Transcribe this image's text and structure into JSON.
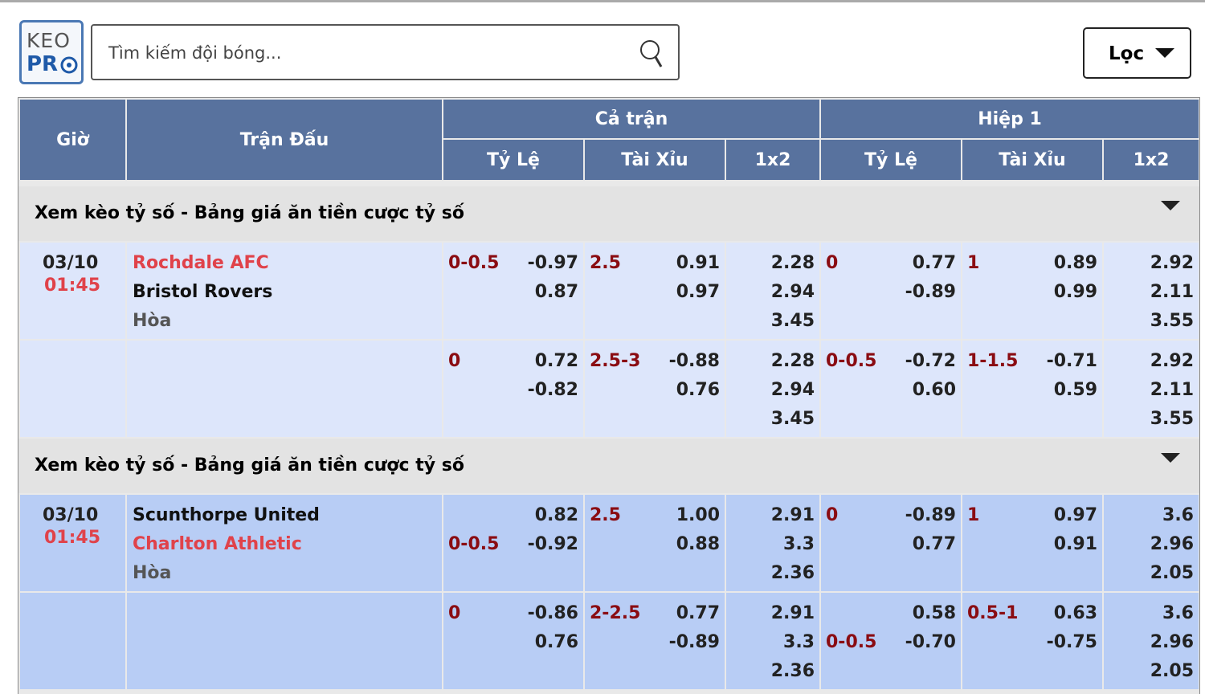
{
  "header": {
    "logo_top": "KEO",
    "logo_bottom": "PR",
    "search_placeholder": "Tìm kiếm đội bóng...",
    "filter": "Lọc"
  },
  "table": {
    "columns": [
      "Giờ",
      "Trận Đấu"
    ],
    "groups": [
      {
        "label": "Cả trận",
        "columns": [
          "Tỷ Lệ",
          "Tài Xỉu",
          "1x2"
        ]
      },
      {
        "label": "Hiệp 1",
        "columns": [
          "Tỷ Lệ",
          "Tài Xỉu",
          "1x2"
        ]
      }
    ],
    "matches": [
      {
        "section": "Xem kèo tỷ số - Bảng giá ăn tiền cược tỷ số",
        "date": "03/10",
        "time": "01:45",
        "teams": [
          {
            "name": "Rochdale AFC",
            "highlight": true
          },
          {
            "name": "Bristol Rovers",
            "highlight": false
          },
          {
            "name": "Hòa",
            "highlight": false
          }
        ],
        "rows": [
          [
            [
              {
                "line": "0-0.5",
                "odd": "-0.97"
              },
              {
                "odd": "0.87"
              }
            ],
            [
              {
                "line": "2.5",
                "odd": "0.91"
              },
              {
                "odd": "0.97"
              }
            ],
            [
              {
                "odd": "2.28"
              },
              {
                "odd": "2.94"
              },
              {
                "odd": "3.45"
              }
            ],
            [
              {
                "line": "0",
                "odd": "0.77"
              },
              {
                "odd": "-0.89"
              }
            ],
            [
              {
                "line": "1",
                "odd": "0.89"
              },
              {
                "odd": "0.99"
              }
            ],
            [
              {
                "odd": "2.92"
              },
              {
                "odd": "2.11"
              },
              {
                "odd": "3.55"
              }
            ]
          ],
          [
            [
              {
                "line": "0",
                "odd": "0.72"
              },
              {
                "odd": "-0.82"
              }
            ],
            [
              {
                "line": "2.5-3",
                "odd": "-0.88"
              },
              {
                "odd": "0.76"
              }
            ],
            [
              {
                "odd": "2.28"
              },
              {
                "odd": "2.94"
              },
              {
                "odd": "3.45"
              }
            ],
            [
              {
                "line": "0-0.5",
                "odd": "-0.72"
              },
              {
                "odd": "0.60"
              }
            ],
            [
              {
                "line": "1-1.5",
                "odd": "-0.71"
              },
              {
                "odd": "0.59"
              }
            ],
            [
              {
                "odd": "2.92"
              },
              {
                "odd": "2.11"
              },
              {
                "odd": "3.55"
              }
            ]
          ]
        ]
      },
      {
        "section": "Xem kèo tỷ số - Bảng giá ăn tiền cược tỷ số",
        "date": "03/10",
        "time": "01:45",
        "teams": [
          {
            "name": "Scunthorpe United",
            "highlight": false
          },
          {
            "name": "Charlton Athletic",
            "highlight": true
          },
          {
            "name": "Hòa",
            "highlight": false
          }
        ],
        "rows": [
          [
            [
              {
                "odd": "0.82"
              },
              {
                "line": "0-0.5",
                "odd": "-0.92"
              }
            ],
            [
              {
                "line": "2.5",
                "odd": "1.00"
              },
              {
                "odd": "0.88"
              }
            ],
            [
              {
                "odd": "2.91"
              },
              {
                "odd": "3.3"
              },
              {
                "odd": "2.36"
              }
            ],
            [
              {
                "line": "0",
                "odd": "-0.89"
              },
              {
                "odd": "0.77"
              }
            ],
            [
              {
                "line": "1",
                "odd": "0.97"
              },
              {
                "odd": "0.91"
              }
            ],
            [
              {
                "odd": "3.6"
              },
              {
                "odd": "2.96"
              },
              {
                "odd": "2.05"
              }
            ]
          ],
          [
            [
              {
                "line": "0",
                "odd": "-0.86"
              },
              {
                "odd": "0.76"
              }
            ],
            [
              {
                "line": "2-2.5",
                "odd": "0.77"
              },
              {
                "odd": "-0.89"
              }
            ],
            [
              {
                "odd": "2.91"
              },
              {
                "odd": "3.3"
              },
              {
                "odd": "2.36"
              }
            ],
            [
              {
                "odd": "0.58"
              },
              {
                "line": "0-0.5",
                "odd": "-0.70"
              }
            ],
            [
              {
                "line": "0.5-1",
                "odd": "0.63"
              },
              {
                "odd": "-0.75"
              }
            ],
            [
              {
                "odd": "3.6"
              },
              {
                "odd": "2.96"
              },
              {
                "odd": "2.05"
              }
            ]
          ]
        ]
      }
    ]
  }
}
